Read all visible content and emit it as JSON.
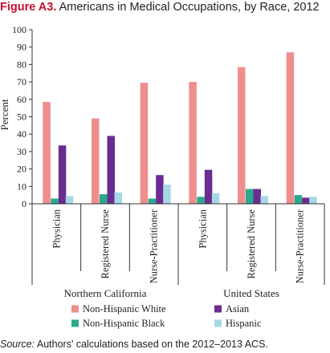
{
  "figure": {
    "label": "Figure A3.",
    "title_text": "Americans in Medical Occupations, by Race, 2012",
    "source_label": "Source:",
    "source_text": "Authors' calculations based on the 2012–2013 ACS."
  },
  "chart_data": {
    "type": "bar",
    "title": "Americans in Medical Occupations, by Race, 2012",
    "ylabel": "Percent",
    "ylim": [
      0,
      100
    ],
    "yticks": [
      0,
      10,
      20,
      30,
      40,
      50,
      60,
      70,
      80,
      90,
      100
    ],
    "groups": [
      {
        "name": "Northern California",
        "categories": [
          "Physician",
          "Registered Nurse",
          "Nurse-Practitioner"
        ]
      },
      {
        "name": "United States",
        "categories": [
          "Physician",
          "Registered Nurse",
          "Nurse-Practitioner"
        ]
      }
    ],
    "series": [
      {
        "name": "Non-Hispanic White",
        "color": "#f08d8d",
        "values": [
          58.5,
          49,
          69.5,
          70,
          78.5,
          87
        ]
      },
      {
        "name": "Non-Hispanic Black",
        "color": "#2aa98e",
        "values": [
          3,
          5.5,
          3,
          4,
          8.5,
          5
        ]
      },
      {
        "name": "Asian",
        "color": "#6a2c91",
        "values": [
          33.5,
          39,
          16.5,
          19.5,
          8.5,
          3.5
        ]
      },
      {
        "name": "Hispanic",
        "color": "#a7d8e6",
        "values": [
          4.5,
          6.5,
          11,
          6,
          4.5,
          4
        ]
      }
    ],
    "legend": {
      "position": "bottom",
      "order": [
        "Non-Hispanic White",
        "Asian",
        "Non-Hispanic Black",
        "Hispanic"
      ]
    },
    "grid": false
  }
}
